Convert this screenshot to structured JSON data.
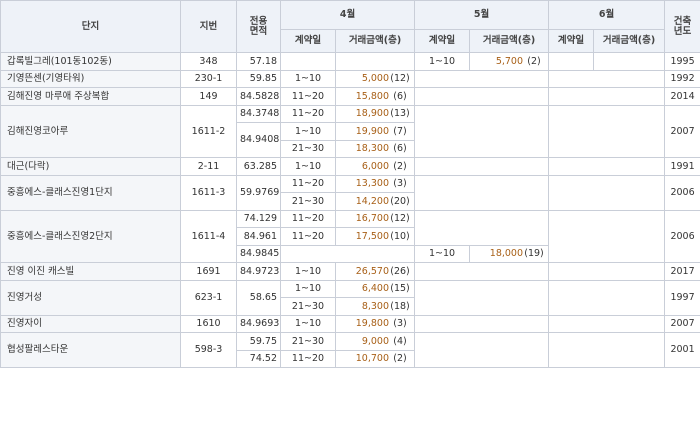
{
  "header": {
    "complex": "단지",
    "lot": "지번",
    "area_l1": "전용",
    "area_l2": "면적",
    "months": [
      "4월",
      "5월",
      "6월"
    ],
    "contract_day": "계약일",
    "amount": "거래금액(층)",
    "year_l1": "건축",
    "year_l2": "년도"
  },
  "rows": [
    {
      "name": "갑록빌그레(101동102동)",
      "lot": "348",
      "area": "57.18",
      "m4d": "",
      "m4a": "",
      "m4f": "",
      "m5d": "1~10",
      "m5a": "5,700",
      "m5f": "(2)",
      "year": "1995"
    },
    {
      "name": "기영뜬센(기영타워)",
      "lot": "230-1",
      "area": "59.85",
      "m4d": "1~10",
      "m4a": "5,000",
      "m4f": "(12)",
      "year": "1992"
    },
    {
      "name": "김해진영 마루애 주상복합",
      "lot": "149",
      "area": "84.5828",
      "m4d": "11~20",
      "m4a": "15,800",
      "m4f": "(6)",
      "year": "2014"
    },
    {
      "name": "김해진영코아루",
      "lot": "1611-2",
      "area": "84.3748",
      "m4d": "11~20",
      "m4a": "18,900",
      "m4f": "(13)",
      "year": "2007"
    },
    {
      "area": "84.9408",
      "m4d": "1~10",
      "m4a": "19,900",
      "m4f": "(7)"
    },
    {
      "m4d": "21~30",
      "m4a": "18,300",
      "m4f": "(6)"
    },
    {
      "name": "대근(다락)",
      "lot": "2-11",
      "area": "63.285",
      "m4d": "1~10",
      "m4a": "6,000",
      "m4f": "(2)",
      "year": "1991"
    },
    {
      "name": "중흥에스-클래스진영1단지",
      "lot": "1611-3",
      "area": "59.9769",
      "m4d": "11~20",
      "m4a": "13,300",
      "m4f": "(3)",
      "year": "2006"
    },
    {
      "m4d": "21~30",
      "m4a": "14,200",
      "m4f": "(20)"
    },
    {
      "name": "중흥에스-클래스진영2단지",
      "lot": "1611-4",
      "area": "74.129",
      "m4d": "11~20",
      "m4a": "16,700",
      "m4f": "(12)",
      "year": "2006"
    },
    {
      "area": "84.961",
      "m4d": "11~20",
      "m4a": "17,500",
      "m4f": "(10)"
    },
    {
      "area": "84.9845",
      "m5d": "1~10",
      "m5a": "18,000",
      "m5f": "(19)"
    },
    {
      "name": "진영 이진 캐스빌",
      "lot": "1691",
      "area": "84.9723",
      "m4d": "1~10",
      "m4a": "26,570",
      "m4f": "(26)",
      "year": "2017"
    },
    {
      "name": "진영거성",
      "lot": "623-1",
      "area": "58.65",
      "m4d": "1~10",
      "m4a": "6,400",
      "m4f": "(15)",
      "year": "1997"
    },
    {
      "m4d": "21~30",
      "m4a": "8,300",
      "m4f": "(18)"
    },
    {
      "name": "진영자이",
      "lot": "1610",
      "area": "84.9693",
      "m4d": "1~10",
      "m4a": "19,800",
      "m4f": "(3)",
      "year": "2007"
    },
    {
      "name": "협성팔레스타운",
      "lot": "598-3",
      "area": "59.75",
      "m4d": "21~30",
      "m4a": "9,000",
      "m4f": "(4)",
      "year": "2001"
    },
    {
      "area": "74.52",
      "m4d": "11~20",
      "m4a": "10,700",
      "m4f": "(2)"
    }
  ]
}
